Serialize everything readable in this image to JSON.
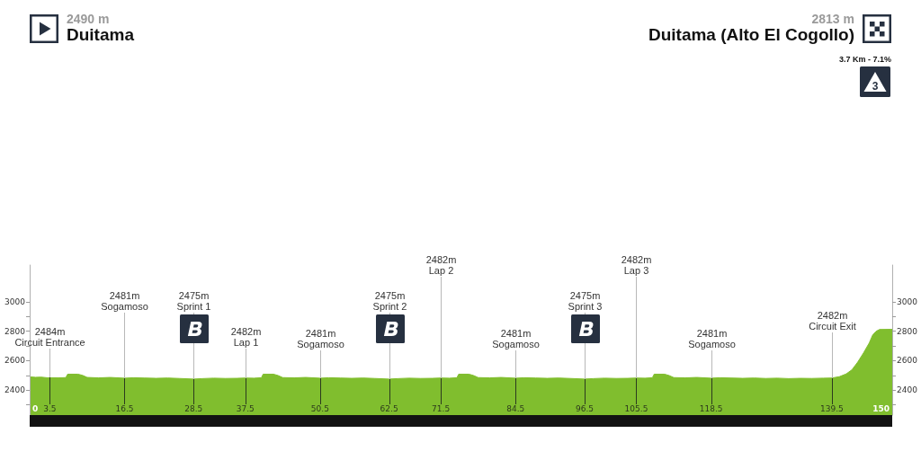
{
  "chart_data": {
    "type": "area",
    "x": [
      0,
      1,
      2,
      3,
      3.5,
      5,
      6.3,
      6.6,
      8.4,
      9.2,
      10,
      12,
      14,
      16.5,
      18,
      20,
      22,
      24,
      26,
      28.5,
      30,
      32,
      34,
      36,
      37.5,
      39,
      40.3,
      40.6,
      42.4,
      43.2,
      44,
      46,
      48,
      50.5,
      52,
      54,
      56,
      58,
      60,
      62.5,
      64,
      66,
      68,
      70,
      71.5,
      73,
      74.3,
      74.6,
      76.4,
      77.2,
      78,
      80,
      82,
      84.5,
      86,
      88,
      90,
      92,
      94,
      96.5,
      98,
      100,
      102,
      104,
      105.5,
      107,
      108.3,
      108.6,
      110.4,
      111.2,
      112,
      114,
      116,
      118.5,
      120,
      122,
      124,
      126,
      128,
      130,
      132,
      134,
      136,
      138,
      139.5,
      140.8,
      142,
      143,
      144,
      145,
      146,
      146.6,
      147.2,
      147.8,
      150
    ],
    "values": [
      2490,
      2487,
      2488,
      2484,
      2484,
      2483,
      2485,
      2508,
      2508,
      2500,
      2486,
      2483,
      2486,
      2481,
      2484,
      2482,
      2480,
      2482,
      2479,
      2475,
      2478,
      2481,
      2479,
      2480,
      2482,
      2481,
      2484,
      2508,
      2508,
      2499,
      2485,
      2483,
      2486,
      2481,
      2484,
      2482,
      2480,
      2482,
      2479,
      2475,
      2478,
      2481,
      2479,
      2480,
      2482,
      2481,
      2484,
      2508,
      2508,
      2499,
      2485,
      2483,
      2486,
      2481,
      2484,
      2482,
      2480,
      2482,
      2479,
      2475,
      2478,
      2481,
      2479,
      2480,
      2482,
      2481,
      2484,
      2508,
      2508,
      2499,
      2485,
      2483,
      2486,
      2481,
      2484,
      2482,
      2480,
      2482,
      2479,
      2481,
      2478,
      2480,
      2479,
      2481,
      2482,
      2491,
      2510,
      2538,
      2590,
      2652,
      2720,
      2774,
      2800,
      2812,
      2813
    ],
    "color": "#80be2e",
    "xlim": [
      0,
      150
    ],
    "xticks": [
      0,
      3.5,
      16.5,
      28.5,
      37.5,
      50.5,
      62.5,
      71.5,
      84.5,
      96.5,
      105.5,
      118.5,
      139.5,
      150
    ],
    "ylim": [
      2230,
      3250
    ],
    "yticks": [
      {
        "value": 2300,
        "label": null
      },
      2400,
      {
        "value": 2500,
        "label": null
      },
      2600,
      {
        "value": 2700,
        "label": null
      },
      2800,
      {
        "value": 2900,
        "label": null
      },
      3000
    ],
    "y2lim": [
      2230,
      3250
    ],
    "y2ticks": [
      {
        "value": 2300,
        "label": null
      },
      2400,
      {
        "value": 2500,
        "label": null
      },
      2600,
      {
        "value": 2700,
        "label": null
      },
      2800,
      {
        "value": 2900,
        "label": null
      },
      3000
    ],
    "annotations": [
      "2490 m\nDuitama",
      "2813 m\nDuitama (Alto El Cogollo)",
      "3.7 Km - 7.1%",
      "3",
      {
        "text": "2484m\nCircuit Entrance",
        "x": 3.5,
        "y": 2484
      },
      {
        "text": "2481m\nSogamoso",
        "x": 16.5,
        "y": 2481
      },
      {
        "text": "2475m\nSprint 1",
        "x": 28.5,
        "y": 2475
      },
      {
        "text": "2482m\nLap 1",
        "x": 37.5,
        "y": 2482
      },
      {
        "text": "2481m\nSogamoso",
        "x": 50.5,
        "y": 2481
      },
      {
        "text": "2475m\nSprint 2",
        "x": 62.5,
        "y": 2475
      },
      {
        "text": "2482m\nLap 2",
        "x": 71.5,
        "y": 2482
      },
      {
        "text": "2481m\nSogamoso",
        "x": 84.5,
        "y": 2481
      },
      {
        "text": "2475m\nSprint 3",
        "x": 96.5,
        "y": 2475
      },
      {
        "text": "2482m\nLap 3",
        "x": 105.5,
        "y": 2482
      },
      {
        "text": "2481m\nSogamoso",
        "x": 118.5,
        "y": 2481
      },
      {
        "text": "2482m\nCircuit Exit",
        "x": 139.5,
        "y": 2482
      }
    ]
  }
}
